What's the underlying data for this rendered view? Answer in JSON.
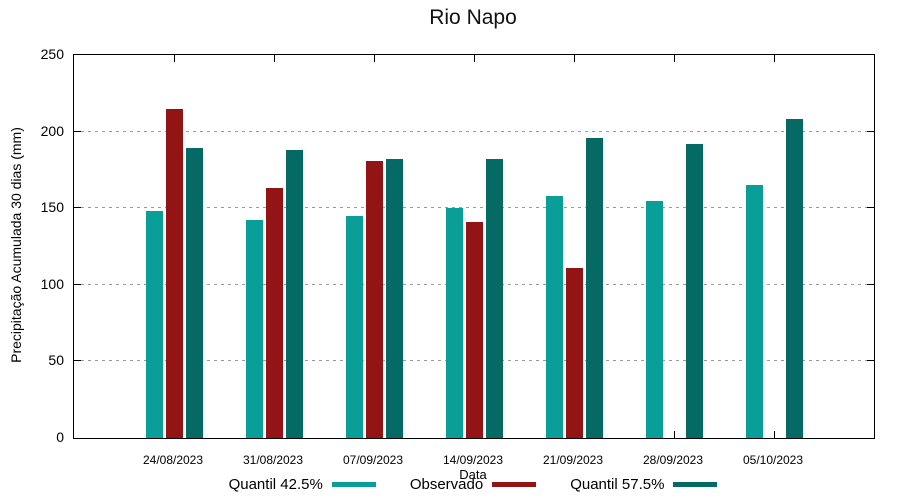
{
  "chart_data": {
    "type": "bar",
    "title": "Rio Napo",
    "xlabel": "Data",
    "ylabel": "Precipitação Acumulada 30 dias (mm)",
    "ylim": [
      0,
      250
    ],
    "ytick_interval": 50,
    "y_tick_labels": [
      "0",
      "50",
      "100",
      "150",
      "200",
      "250"
    ],
    "grid": true,
    "grid_style": "dotted-gray-horizontal",
    "legend_position": "bottom-center",
    "categories": [
      "24/08/2023",
      "31/08/2023",
      "07/09/2023",
      "14/09/2023",
      "21/09/2023",
      "28/09/2023",
      "05/10/2023"
    ],
    "series": [
      {
        "name": "Quantil 42.5%",
        "color": "#099E98",
        "values": [
          148,
          142,
          145,
          150,
          158,
          155,
          165
        ]
      },
      {
        "name": "Observado",
        "color": "#931414",
        "values": [
          215,
          163,
          181,
          141,
          111,
          null,
          null
        ]
      },
      {
        "name": "Quantil 57.5%",
        "color": "#056A64",
        "values": [
          189,
          188,
          182,
          182,
          196,
          192,
          208
        ]
      }
    ]
  }
}
